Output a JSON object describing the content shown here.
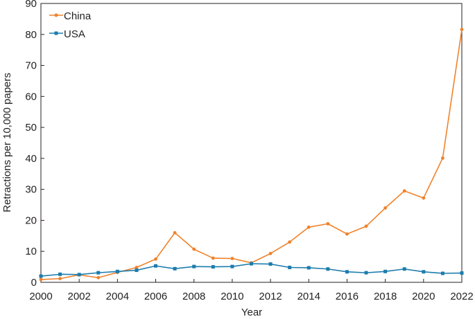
{
  "chart_data": {
    "type": "line",
    "xlabel": "Year",
    "ylabel": "Retractions per 10,000 papers",
    "xlim": [
      2000,
      2022
    ],
    "ylim": [
      0,
      90
    ],
    "x_ticks": [
      "2000",
      "2002",
      "2004",
      "2006",
      "2008",
      "2010",
      "2012",
      "2014",
      "2016",
      "2018",
      "2020",
      "2022"
    ],
    "y_ticks": [
      "0",
      "10",
      "20",
      "30",
      "40",
      "50",
      "60",
      "70",
      "80",
      "90"
    ],
    "x": [
      2000,
      2001,
      2002,
      2003,
      2004,
      2005,
      2006,
      2007,
      2008,
      2009,
      2010,
      2011,
      2012,
      2013,
      2014,
      2015,
      2016,
      2017,
      2018,
      2019,
      2020,
      2021,
      2022
    ],
    "legend_position": "top-left",
    "series": [
      {
        "name": "China",
        "color": "#f0822a",
        "marker": "circle",
        "values": [
          0.9,
          1.2,
          2.4,
          1.5,
          3.2,
          4.8,
          7.5,
          16.0,
          10.7,
          7.8,
          7.7,
          6.3,
          9.3,
          13.0,
          17.8,
          18.9,
          15.6,
          18.1,
          24.0,
          29.5,
          27.2,
          40.1,
          81.6
        ]
      },
      {
        "name": "USA",
        "color": "#1c7cad",
        "marker": "square",
        "values": [
          2.0,
          2.6,
          2.5,
          3.1,
          3.5,
          3.9,
          5.3,
          4.4,
          5.1,
          5.0,
          5.1,
          6.0,
          5.9,
          4.8,
          4.7,
          4.3,
          3.4,
          3.1,
          3.5,
          4.3,
          3.4,
          2.9,
          3.0
        ]
      }
    ]
  }
}
